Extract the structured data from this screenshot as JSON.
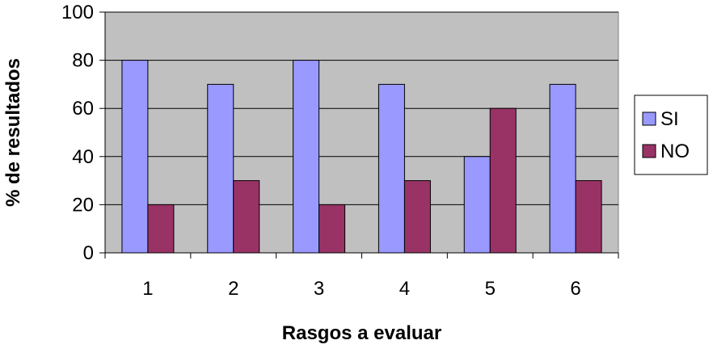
{
  "chart_data": {
    "type": "bar",
    "title": "",
    "xlabel": "Rasgos a evaluar",
    "ylabel": "% de resultados",
    "categories": [
      "1",
      "2",
      "3",
      "4",
      "5",
      "6"
    ],
    "series": [
      {
        "name": "SI",
        "values": [
          80,
          70,
          80,
          70,
          40,
          70
        ],
        "color": "#9999ff"
      },
      {
        "name": "NO",
        "values": [
          20,
          30,
          20,
          30,
          60,
          30
        ],
        "color": "#993366"
      }
    ],
    "ylim": [
      0,
      100
    ],
    "yticks": [
      0,
      20,
      40,
      60,
      80,
      100
    ],
    "grid": true,
    "plot_background": "#c0c0c0",
    "legend_position": "right"
  }
}
